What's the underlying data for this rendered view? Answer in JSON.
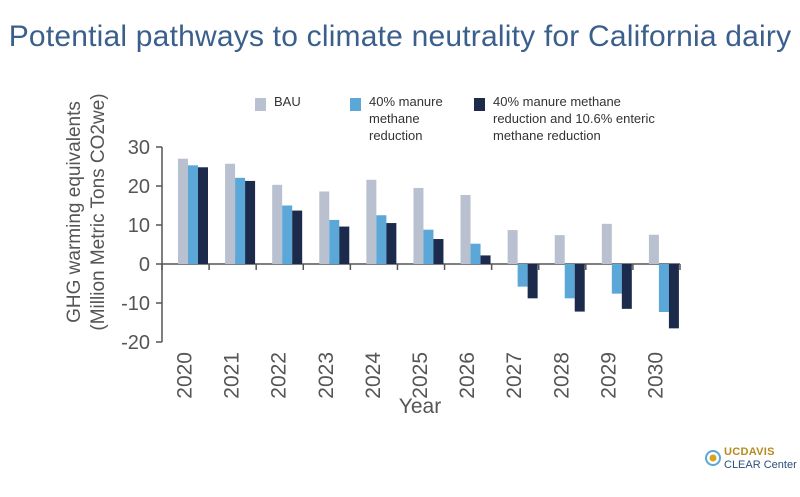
{
  "title": "Potential pathways to climate neutrality for California dairy",
  "logo": {
    "top": "UCDAVIS",
    "bottom": "CLEAR Center"
  },
  "colors": {
    "title": "#3b5f8c",
    "axis": "#555555",
    "bau": "#b9c0cf",
    "manure": "#5aa7d8",
    "combined": "#1c2b4c"
  },
  "chart_data": {
    "type": "bar",
    "categories": [
      "2020",
      "2021",
      "2022",
      "2023",
      "2024",
      "2025",
      "2026",
      "2027",
      "2028",
      "2029",
      "2030"
    ],
    "series": [
      {
        "name": "BAU",
        "values": [
          27,
          25.7,
          20.3,
          18.6,
          21.6,
          19.5,
          17.7,
          8.7,
          7.4,
          10.3,
          7.5
        ]
      },
      {
        "name": "40% manure methane reduction",
        "values": [
          25.3,
          22.1,
          15,
          11.3,
          12.5,
          8.8,
          5.2,
          -5.8,
          -8.8,
          -7.6,
          -12.3
        ]
      },
      {
        "name": "40% manure methane reduction and 10.6% enteric methane reduction",
        "values": [
          24.8,
          21.3,
          13.7,
          9.6,
          10.5,
          6.4,
          2.2,
          -8.8,
          -12.2,
          -11.5,
          -16.5
        ]
      }
    ],
    "legend_labels": [
      [
        "BAU"
      ],
      [
        "40% manure",
        "methane",
        "reduction"
      ],
      [
        "40% manure methane",
        "reduction and 10.6% enteric",
        "methane reduction"
      ]
    ],
    "xlabel": "Year",
    "ylabel_lines": [
      "GHG warming equivalents",
      "(Million Metric Tons CO2we)"
    ],
    "yticks": [
      30,
      20,
      10,
      0,
      -10,
      -20
    ],
    "ylim": [
      -20,
      30
    ],
    "legend_position": "top"
  }
}
